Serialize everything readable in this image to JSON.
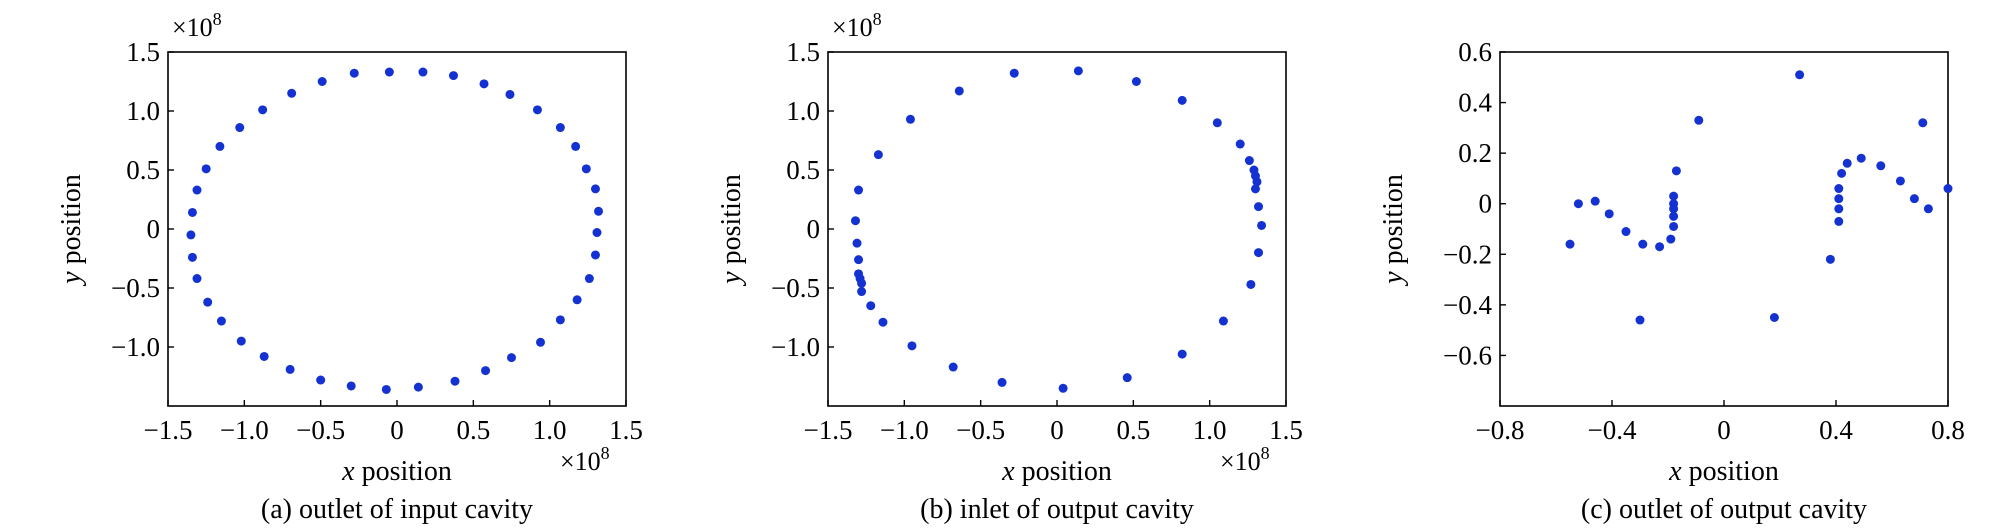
{
  "colors": {
    "marker": "#1432d2",
    "axis": "#000000",
    "background": "#ffffff"
  },
  "chart_data": [
    {
      "type": "scatter",
      "caption": "(a) outlet of input cavity",
      "xlabel_var": "x",
      "xlabel_rest": " position",
      "ylabel_var": "y",
      "ylabel_rest": " position",
      "xlim": [
        -1.5,
        1.5
      ],
      "ylim": [
        -1.5,
        1.5
      ],
      "xticks": [
        -1.5,
        -1.0,
        -0.5,
        0,
        0.5,
        1.0,
        1.5
      ],
      "xtick_labels": [
        "−1.5",
        "−1.0",
        "−0.5",
        "0",
        "0.5",
        "1.0",
        "1.5"
      ],
      "yticks": [
        -1.0,
        -0.5,
        0,
        0.5,
        1.0,
        1.5
      ],
      "ytick_labels": [
        "−1.0",
        "−0.5",
        "0",
        "0.5",
        "1.0",
        "1.5"
      ],
      "x_multiplier": "×10",
      "x_multiplier_exp": "8",
      "y_multiplier": "×10",
      "y_multiplier_exp": "8",
      "grid": false,
      "points": [
        [
          -0.05,
          1.33
        ],
        [
          0.17,
          1.33
        ],
        [
          0.37,
          1.3
        ],
        [
          0.57,
          1.23
        ],
        [
          0.74,
          1.14
        ],
        [
          0.92,
          1.01
        ],
        [
          1.07,
          0.86
        ],
        [
          1.17,
          0.7
        ],
        [
          1.24,
          0.51
        ],
        [
          1.3,
          0.34
        ],
        [
          1.32,
          0.15
        ],
        [
          1.31,
          -0.03
        ],
        [
          1.3,
          -0.22
        ],
        [
          1.26,
          -0.42
        ],
        [
          1.18,
          -0.6
        ],
        [
          1.07,
          -0.77
        ],
        [
          0.94,
          -0.96
        ],
        [
          0.75,
          -1.09
        ],
        [
          0.58,
          -1.2
        ],
        [
          0.38,
          -1.29
        ],
        [
          0.14,
          -1.34
        ],
        [
          -0.07,
          -1.36
        ],
        [
          -0.3,
          -1.33
        ],
        [
          -0.5,
          -1.28
        ],
        [
          -0.7,
          -1.19
        ],
        [
          -0.87,
          -1.08
        ],
        [
          -1.02,
          -0.95
        ],
        [
          -1.15,
          -0.78
        ],
        [
          -1.24,
          -0.62
        ],
        [
          -1.31,
          -0.42
        ],
        [
          -1.34,
          -0.24
        ],
        [
          -1.35,
          -0.05
        ],
        [
          -1.34,
          0.14
        ],
        [
          -1.31,
          0.33
        ],
        [
          -1.25,
          0.51
        ],
        [
          -1.16,
          0.7
        ],
        [
          -1.03,
          0.86
        ],
        [
          -0.88,
          1.01
        ],
        [
          -0.69,
          1.15
        ],
        [
          -0.49,
          1.25
        ],
        [
          -0.28,
          1.32
        ]
      ]
    },
    {
      "type": "scatter",
      "caption": "(b) inlet of output cavity",
      "xlabel_var": "x",
      "xlabel_rest": " position",
      "ylabel_var": "y",
      "ylabel_rest": " position",
      "xlim": [
        -1.5,
        1.5
      ],
      "ylim": [
        -1.5,
        1.5
      ],
      "xticks": [
        -1.5,
        -1.0,
        -0.5,
        0,
        0.5,
        1.0,
        1.5
      ],
      "xtick_labels": [
        "−1.5",
        "−1.0",
        "−0.5",
        "0",
        "0.5",
        "1.0",
        "1.5"
      ],
      "yticks": [
        -1.0,
        -0.5,
        0,
        0.5,
        1.0,
        1.5
      ],
      "ytick_labels": [
        "−1.0",
        "−0.5",
        "0",
        "0.5",
        "1.0",
        "1.5"
      ],
      "x_multiplier": "×10",
      "x_multiplier_exp": "8",
      "y_multiplier": "×10",
      "y_multiplier_exp": "8",
      "grid": false,
      "points": [
        [
          -0.28,
          1.32
        ],
        [
          0.14,
          1.34
        ],
        [
          0.52,
          1.25
        ],
        [
          0.82,
          1.09
        ],
        [
          1.05,
          0.9
        ],
        [
          1.2,
          0.72
        ],
        [
          1.26,
          0.58
        ],
        [
          1.29,
          0.5
        ],
        [
          1.3,
          0.45
        ],
        [
          1.31,
          0.4
        ],
        [
          1.3,
          0.34
        ],
        [
          1.32,
          0.19
        ],
        [
          1.34,
          0.03
        ],
        [
          1.32,
          -0.2
        ],
        [
          1.27,
          -0.47
        ],
        [
          1.09,
          -0.78
        ],
        [
          0.82,
          -1.06
        ],
        [
          0.46,
          -1.26
        ],
        [
          0.04,
          -1.35
        ],
        [
          -0.36,
          -1.3
        ],
        [
          -0.68,
          -1.17
        ],
        [
          -0.95,
          -0.99
        ],
        [
          -1.14,
          -0.79
        ],
        [
          -1.22,
          -0.65
        ],
        [
          -1.28,
          -0.53
        ],
        [
          -1.28,
          -0.46
        ],
        [
          -1.29,
          -0.42
        ],
        [
          -1.3,
          -0.38
        ],
        [
          -1.3,
          -0.26
        ],
        [
          -1.31,
          -0.12
        ],
        [
          -1.32,
          0.07
        ],
        [
          -1.3,
          0.33
        ],
        [
          -1.17,
          0.63
        ],
        [
          -0.96,
          0.93
        ],
        [
          -0.64,
          1.17
        ]
      ]
    },
    {
      "type": "scatter",
      "caption": "(c) outlet of output cavity",
      "xlabel_var": "x",
      "xlabel_rest": " position",
      "ylabel_var": "y",
      "ylabel_rest": " position",
      "xlim": [
        -0.8,
        0.8
      ],
      "ylim": [
        -0.8,
        0.6
      ],
      "xticks": [
        -0.8,
        -0.4,
        0,
        0.4,
        0.8
      ],
      "xtick_labels": [
        "−0.8",
        "−0.4",
        "0",
        "0.4",
        "0.8"
      ],
      "yticks": [
        -0.6,
        -0.4,
        -0.2,
        0,
        0.2,
        0.4,
        0.6
      ],
      "ytick_labels": [
        "−0.6",
        "−0.4",
        "−0.2",
        "0",
        "0.2",
        "0.4",
        "0.6"
      ],
      "grid": false,
      "points": [
        [
          -0.55,
          -0.16
        ],
        [
          -0.52,
          0.0
        ],
        [
          -0.46,
          0.01
        ],
        [
          -0.41,
          -0.04
        ],
        [
          -0.35,
          -0.11
        ],
        [
          -0.29,
          -0.16
        ],
        [
          -0.23,
          -0.17
        ],
        [
          -0.19,
          -0.14
        ],
        [
          -0.18,
          -0.09
        ],
        [
          -0.18,
          -0.05
        ],
        [
          -0.18,
          -0.02
        ],
        [
          -0.18,
          0.0
        ],
        [
          -0.18,
          0.03
        ],
        [
          -0.17,
          0.13
        ],
        [
          -0.3,
          -0.46
        ],
        [
          -0.09,
          0.33
        ],
        [
          0.18,
          -0.45
        ],
        [
          0.27,
          0.51
        ],
        [
          0.38,
          -0.22
        ],
        [
          0.41,
          -0.07
        ],
        [
          0.41,
          -0.02
        ],
        [
          0.41,
          0.02
        ],
        [
          0.41,
          0.06
        ],
        [
          0.42,
          0.12
        ],
        [
          0.44,
          0.16
        ],
        [
          0.49,
          0.18
        ],
        [
          0.56,
          0.15
        ],
        [
          0.63,
          0.09
        ],
        [
          0.68,
          0.02
        ],
        [
          0.71,
          0.32
        ],
        [
          0.73,
          -0.02
        ],
        [
          0.8,
          0.06
        ]
      ]
    }
  ]
}
